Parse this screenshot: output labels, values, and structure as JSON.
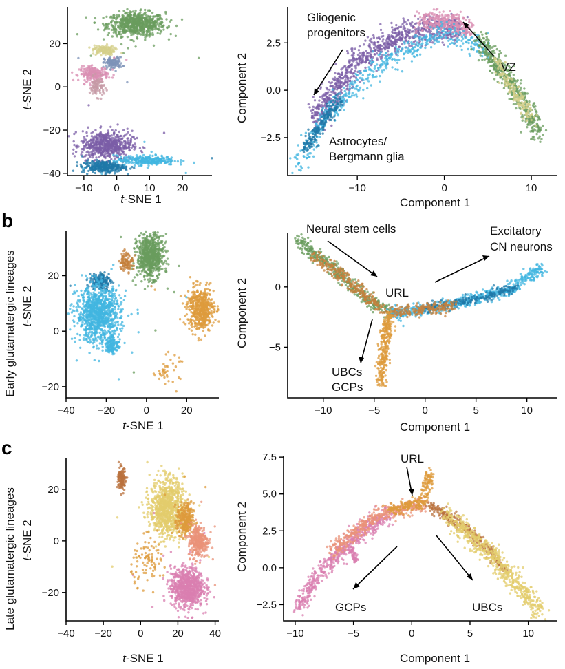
{
  "panels": [
    {
      "label": "",
      "row_label": ""
    },
    {
      "label": "b",
      "row_label": "Early glutamatergic lineages"
    },
    {
      "label": "c",
      "row_label": "Late glutamatergic lineages"
    }
  ],
  "chart_data": [
    {
      "type": "scatter",
      "id": "a-tsne",
      "xlabel": "t-SNE 1",
      "ylabel": "t-SNE 2",
      "xlim": [
        -15,
        29
      ],
      "ylim": [
        -41,
        37
      ],
      "xticks": [
        -10,
        0,
        10,
        20
      ],
      "yticks": [
        -40,
        -20,
        0,
        20
      ],
      "clusters": [
        {
          "color": "#6a9c5e",
          "cx": 6,
          "cy": 29,
          "rx": 8,
          "ry": 5,
          "n": 700
        },
        {
          "color": "#d4cf8a",
          "cx": -4,
          "cy": 17,
          "rx": 3,
          "ry": 2,
          "n": 120
        },
        {
          "color": "#7d93b8",
          "cx": -1,
          "cy": 11,
          "rx": 2.5,
          "ry": 2.5,
          "n": 120
        },
        {
          "color": "#d98fb3",
          "cx": -7,
          "cy": 6,
          "rx": 4,
          "ry": 3,
          "n": 220
        },
        {
          "color": "#c599a6",
          "cx": -6,
          "cy": 0,
          "rx": 2,
          "ry": 4,
          "n": 90
        },
        {
          "color": "#7b5ea7",
          "cx": -3,
          "cy": -27,
          "rx": 7,
          "ry": 6,
          "n": 600
        },
        {
          "color": "#1f78a8",
          "cx": -4,
          "cy": -37,
          "rx": 6,
          "ry": 2.5,
          "n": 300
        },
        {
          "color": "#41b6e0",
          "cx": 9,
          "cy": -34,
          "rx": 8,
          "ry": 2,
          "n": 280
        }
      ]
    },
    {
      "type": "scatter",
      "id": "a-traj",
      "xlabel": "Component 1",
      "ylabel": "Component 2",
      "xlim": [
        -18,
        13
      ],
      "ylim": [
        -4.5,
        4.4
      ],
      "xticks": [
        -10,
        0,
        10
      ],
      "yticks": [
        -2.5,
        0.0,
        2.5
      ],
      "ytick_labels": [
        "−2.5",
        "0.0",
        "2.5"
      ],
      "annotations": [
        {
          "lines": [
            "Gliogenic",
            "progenitors"
          ]
        },
        {
          "lines": [
            "VZ"
          ]
        },
        {
          "lines": [
            "Astrocytes/",
            "Bergmann glia"
          ]
        }
      ],
      "branches": [
        {
          "color": "#7b5ea7",
          "path": [
            [
              -15,
              -1.5
            ],
            [
              -10,
              1.5
            ],
            [
              -5,
              3.0
            ],
            [
              -1,
              3.2
            ],
            [
              2,
              3.3
            ]
          ],
          "spread": 0.35,
          "n": 900
        },
        {
          "color": "#d98fb3",
          "path": [
            [
              -3,
              3.6
            ],
            [
              0,
              3.7
            ],
            [
              3,
              3.2
            ]
          ],
          "spread": 0.25,
          "n": 300
        },
        {
          "color": "#41b6e0",
          "path": [
            [
              -17,
              -4.0
            ],
            [
              -14,
              -1.6
            ],
            [
              -8,
              1.2
            ],
            [
              0,
              3.1
            ],
            [
              5,
              2.0
            ]
          ],
          "spread": 0.3,
          "n": 500
        },
        {
          "color": "#1f78a8",
          "path": [
            [
              -16,
              -3.0
            ],
            [
              -12,
              -0.5
            ]
          ],
          "spread": 0.2,
          "n": 200
        },
        {
          "color": "#6a9c5e",
          "path": [
            [
              4,
              2.6
            ],
            [
              8,
              0.2
            ],
            [
              11,
              -2.3
            ]
          ],
          "spread": 0.3,
          "n": 500
        },
        {
          "color": "#d4cf8a",
          "path": [
            [
              6,
              1.5
            ],
            [
              10,
              -1.5
            ]
          ],
          "spread": 0.2,
          "n": 150
        }
      ]
    },
    {
      "type": "scatter",
      "id": "b-tsne",
      "xlabel": "t-SNE 1",
      "ylabel": "t-SNE 2",
      "xlim": [
        -40,
        36
      ],
      "ylim": [
        -24,
        36
      ],
      "xticks": [
        -40,
        -20,
        0,
        20
      ],
      "yticks": [
        -20,
        0,
        20
      ],
      "ytick_labels": [
        "−20",
        "0",
        "20"
      ],
      "clusters": [
        {
          "color": "#6a9c5e",
          "cx": 2,
          "cy": 27,
          "rx": 6,
          "ry": 7,
          "n": 700
        },
        {
          "color": "#c4803c",
          "cx": -10,
          "cy": 25,
          "rx": 3,
          "ry": 3,
          "n": 100
        },
        {
          "color": "#1f78a8",
          "cx": -23,
          "cy": 18,
          "rx": 5,
          "ry": 3,
          "n": 150
        },
        {
          "color": "#41b6e0",
          "cx": -24,
          "cy": 6,
          "rx": 10,
          "ry": 9,
          "n": 1000
        },
        {
          "color": "#41b6e0",
          "cx": -17,
          "cy": -5,
          "rx": 3,
          "ry": 3,
          "n": 120
        },
        {
          "color": "#dd9b3c",
          "cx": 27,
          "cy": 8,
          "rx": 6,
          "ry": 7,
          "n": 500
        },
        {
          "color": "#dd9b3c",
          "cx": 10,
          "cy": -14,
          "rx": 6,
          "ry": 5,
          "n": 40
        }
      ]
    },
    {
      "type": "scatter",
      "id": "b-traj",
      "xlabel": "Component 1",
      "ylabel": "Component 2",
      "xlim": [
        -13.5,
        13
      ],
      "ylim": [
        -9.2,
        4.5
      ],
      "xticks": [
        -10,
        -5,
        0,
        5,
        10
      ],
      "yticks": [
        -5,
        0
      ],
      "ytick_labels": [
        "−5",
        "0"
      ],
      "annotations": [
        {
          "lines": [
            "Neural stem cells"
          ]
        },
        {
          "lines": [
            "Excitatory",
            "CN neurons"
          ]
        },
        {
          "lines": [
            "URL"
          ]
        },
        {
          "lines": [
            "UBCs",
            "GCPs"
          ]
        }
      ],
      "branches": [
        {
          "color": "#6a9c5e",
          "path": [
            [
              -12.5,
              3.8
            ],
            [
              -9,
              1.5
            ],
            [
              -6,
              -0.8
            ],
            [
              -3.5,
              -2.2
            ]
          ],
          "spread": 0.3,
          "n": 400
        },
        {
          "color": "#c4803c",
          "path": [
            [
              -11,
              2.7
            ],
            [
              -7,
              0.2
            ],
            [
              -4,
              -2.1
            ]
          ],
          "spread": 0.3,
          "n": 250
        },
        {
          "color": "#41b6e0",
          "path": [
            [
              -3.5,
              -2.2
            ],
            [
              2,
              -1.6
            ],
            [
              8,
              -0.3
            ],
            [
              11.5,
              1.5
            ]
          ],
          "spread": 0.25,
          "n": 600
        },
        {
          "color": "#1f78a8",
          "path": [
            [
              0,
              -1.8
            ],
            [
              6,
              -0.8
            ],
            [
              9,
              0
            ]
          ],
          "spread": 0.2,
          "n": 200
        },
        {
          "color": "#c4803c",
          "path": [
            [
              -3.5,
              -2.2
            ],
            [
              3,
              -1.5
            ]
          ],
          "spread": 0.25,
          "n": 200
        },
        {
          "color": "#dd9b3c",
          "path": [
            [
              -3.5,
              -2.2
            ],
            [
              -4,
              -5
            ],
            [
              -4.3,
              -8
            ]
          ],
          "spread": 0.3,
          "n": 300
        }
      ]
    },
    {
      "type": "scatter",
      "id": "c-tsne",
      "xlabel": "t-SNE 1",
      "ylabel": "t-SNE 2",
      "xlim": [
        -40,
        42
      ],
      "ylim": [
        -31,
        32
      ],
      "xticks": [
        -40,
        -20,
        0,
        20,
        40
      ],
      "yticks": [
        -20,
        0,
        20
      ],
      "ytick_labels": [
        "−20",
        "0",
        "20"
      ],
      "clusters": [
        {
          "color": "#b9713e",
          "cx": -10,
          "cy": 24,
          "rx": 2,
          "ry": 4,
          "n": 120
        },
        {
          "color": "#e3cc6c",
          "cx": 14,
          "cy": 13,
          "rx": 8,
          "ry": 10,
          "n": 900
        },
        {
          "color": "#dd9b3c",
          "cx": 24,
          "cy": 8,
          "rx": 4,
          "ry": 6,
          "n": 300
        },
        {
          "color": "#ea9278",
          "cx": 31,
          "cy": 0,
          "rx": 5,
          "ry": 6,
          "n": 300
        },
        {
          "color": "#d97fb0",
          "cx": 25,
          "cy": -18,
          "rx": 8,
          "ry": 7,
          "n": 800
        },
        {
          "color": "#dd9b3c",
          "cx": 5,
          "cy": -8,
          "rx": 9,
          "ry": 8,
          "n": 90
        }
      ]
    },
    {
      "type": "scatter",
      "id": "c-traj",
      "xlabel": "Component 1",
      "ylabel": "Component 2",
      "xlim": [
        -11,
        12.5
      ],
      "ylim": [
        -3.6,
        7.6
      ],
      "xticks": [
        -10,
        -5,
        0,
        5,
        10
      ],
      "yticks": [
        -2.5,
        0.0,
        2.5,
        5.0,
        7.5
      ],
      "ytick_labels": [
        "−2.5",
        "0.0",
        "2.5",
        "5.0",
        "7.5"
      ],
      "annotations": [
        {
          "lines": [
            "URL"
          ]
        },
        {
          "lines": [
            "GCPs"
          ]
        },
        {
          "lines": [
            "UBCs"
          ]
        }
      ],
      "branches": [
        {
          "color": "#d97fb0",
          "path": [
            [
              -9.8,
              -2.8
            ],
            [
              -8,
              -0.5
            ],
            [
              -5,
              2.0
            ],
            [
              -2,
              3.6
            ]
          ],
          "spread": 0.3,
          "n": 500
        },
        {
          "color": "#ea9278",
          "path": [
            [
              -7,
              1.0
            ],
            [
              -3,
              3.6
            ],
            [
              1,
              4.3
            ]
          ],
          "spread": 0.25,
          "n": 400
        },
        {
          "color": "#dd9b3c",
          "path": [
            [
              -2,
              3.9
            ],
            [
              1,
              4.4
            ],
            [
              1.5,
              6.5
            ]
          ],
          "spread": 0.2,
          "n": 250
        },
        {
          "color": "#b9713e",
          "path": [
            [
              1.5,
              4.3
            ],
            [
              5,
              2.5
            ],
            [
              8,
              0
            ]
          ],
          "spread": 0.2,
          "n": 300
        },
        {
          "color": "#e3cc6c",
          "path": [
            [
              3,
              3.5
            ],
            [
              7,
              0.8
            ],
            [
              11,
              -3.0
            ]
          ],
          "spread": 0.35,
          "n": 600
        },
        {
          "color": "#d97fb0",
          "path": [
            [
              -5.2,
              1.3
            ],
            [
              -4.8,
              0.4
            ]
          ],
          "spread": 0.15,
          "n": 60
        }
      ]
    }
  ]
}
